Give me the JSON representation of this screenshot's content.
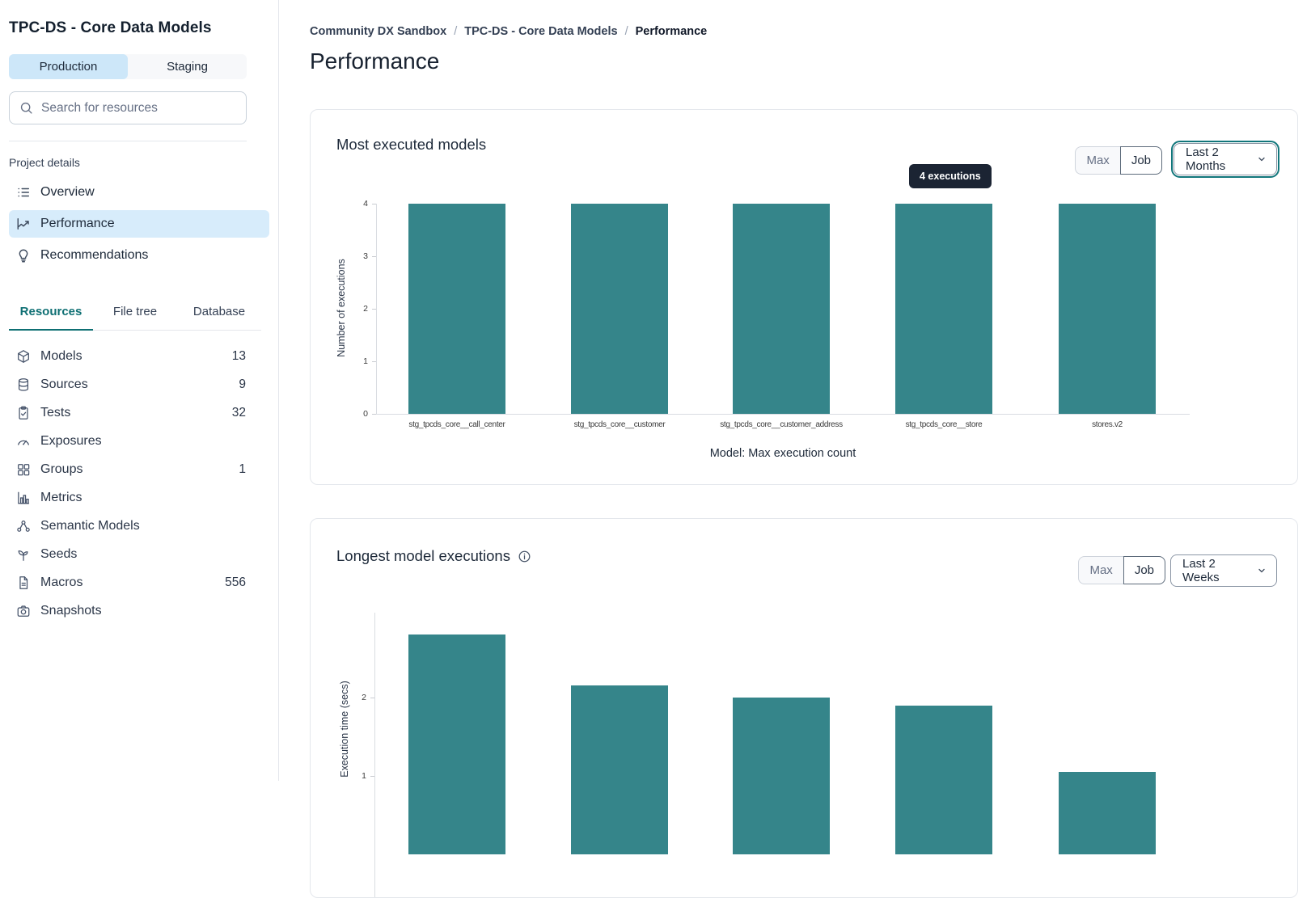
{
  "sidebar": {
    "project_title": "TPC-DS - Core Data Models",
    "env_tabs": [
      {
        "label": "Production",
        "active": true
      },
      {
        "label": "Staging",
        "active": false
      }
    ],
    "search_placeholder": "Search for resources",
    "section_label": "Project details",
    "nav": [
      {
        "label": "Overview",
        "active": false
      },
      {
        "label": "Performance",
        "active": true
      },
      {
        "label": "Recommendations",
        "active": false
      }
    ],
    "tabs": [
      {
        "label": "Resources",
        "active": true
      },
      {
        "label": "File tree",
        "active": false
      },
      {
        "label": "Database",
        "active": false
      }
    ],
    "resources": [
      {
        "label": "Models",
        "count": "13"
      },
      {
        "label": "Sources",
        "count": "9"
      },
      {
        "label": "Tests",
        "count": "32"
      },
      {
        "label": "Exposures",
        "count": ""
      },
      {
        "label": "Groups",
        "count": "1"
      },
      {
        "label": "Metrics",
        "count": ""
      },
      {
        "label": "Semantic Models",
        "count": ""
      },
      {
        "label": "Seeds",
        "count": ""
      },
      {
        "label": "Macros",
        "count": "556"
      },
      {
        "label": "Snapshots",
        "count": ""
      }
    ]
  },
  "breadcrumb": {
    "separator": "/",
    "items": [
      "Community DX Sandbox",
      "TPC-DS - Core Data Models",
      "Performance"
    ]
  },
  "page_title": "Performance",
  "cards": [
    {
      "title": "Most executed models",
      "toggle_max": "Max",
      "toggle_job": "Job",
      "period": "Last 2 Months",
      "tooltip": "4 executions"
    },
    {
      "title": "Longest model executions",
      "toggle_max": "Max",
      "toggle_job": "Job",
      "period": "Last 2 Weeks"
    }
  ],
  "chart_data": [
    {
      "type": "bar",
      "title": "Most executed models",
      "categories": [
        "stg_tpcds_core__call_center",
        "stg_tpcds_core__customer",
        "stg_tpcds_core__customer_address",
        "stg_tpcds_core__store",
        "stores.v2"
      ],
      "values": [
        4,
        4,
        4,
        4,
        4
      ],
      "xlabel": "Model: Max execution count",
      "ylabel": "Number of executions",
      "ylim": [
        0,
        4
      ],
      "yticks": [
        0,
        1,
        2,
        3,
        4
      ],
      "bar_color": "#35858A",
      "legend": "none",
      "grid": "off",
      "annotation": "4 executions"
    },
    {
      "type": "bar",
      "title": "Longest model executions",
      "values": [
        2.8,
        2.15,
        2.0,
        1.9,
        1.05
      ],
      "ylabel": "Execution time (secs)",
      "yticks": [
        1,
        2
      ],
      "bar_color": "#35858A",
      "legend": "none",
      "grid": "off",
      "note_visible_portion": "chart cut off at bottom of viewport"
    }
  ],
  "colors": {
    "accent_teal": "#0E6F73",
    "bar_teal": "#35858A",
    "selection_blue": "#CDE7F9",
    "tooltip_bg": "#1B2433",
    "card_border": "#E4E7EC",
    "text_dark": "#1D2939",
    "text_gray": "#667085"
  }
}
